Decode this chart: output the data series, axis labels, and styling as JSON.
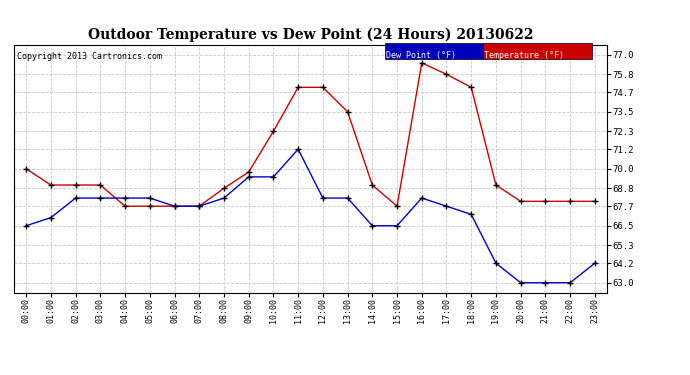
{
  "title": "Outdoor Temperature vs Dew Point (24 Hours) 20130622",
  "copyright": "Copyright 2013 Cartronics.com",
  "background_color": "#ffffff",
  "grid_color": "#c8c8c8",
  "x_labels": [
    "00:00",
    "01:00",
    "02:00",
    "03:00",
    "04:00",
    "05:00",
    "06:00",
    "07:00",
    "08:00",
    "09:00",
    "10:00",
    "11:00",
    "12:00",
    "13:00",
    "14:00",
    "15:00",
    "16:00",
    "17:00",
    "18:00",
    "19:00",
    "20:00",
    "21:00",
    "22:00",
    "23:00"
  ],
  "y_ticks": [
    63.0,
    64.2,
    65.3,
    66.5,
    67.7,
    68.8,
    70.0,
    71.2,
    72.3,
    73.5,
    74.7,
    75.8,
    77.0
  ],
  "ylim_min": 62.4,
  "ylim_max": 77.6,
  "temp_color": "#cc0000",
  "dew_color": "#0000cc",
  "marker_color": "#000000",
  "legend_temp_bg": "#cc0000",
  "legend_dew_bg": "#0000bb",
  "temperature": [
    70.0,
    69.0,
    69.0,
    69.0,
    67.7,
    67.7,
    67.7,
    67.7,
    68.8,
    69.8,
    72.3,
    75.0,
    75.0,
    73.5,
    69.0,
    67.7,
    76.5,
    75.8,
    75.0,
    69.0,
    68.0,
    68.0,
    68.0,
    68.0
  ],
  "dew_point": [
    66.5,
    67.0,
    68.2,
    68.2,
    68.2,
    68.2,
    67.7,
    67.7,
    68.2,
    69.5,
    69.5,
    71.2,
    68.2,
    68.2,
    66.5,
    66.5,
    68.2,
    67.7,
    67.2,
    64.2,
    63.0,
    63.0,
    63.0,
    64.2
  ],
  "figwidth": 6.9,
  "figheight": 3.75,
  "dpi": 100
}
